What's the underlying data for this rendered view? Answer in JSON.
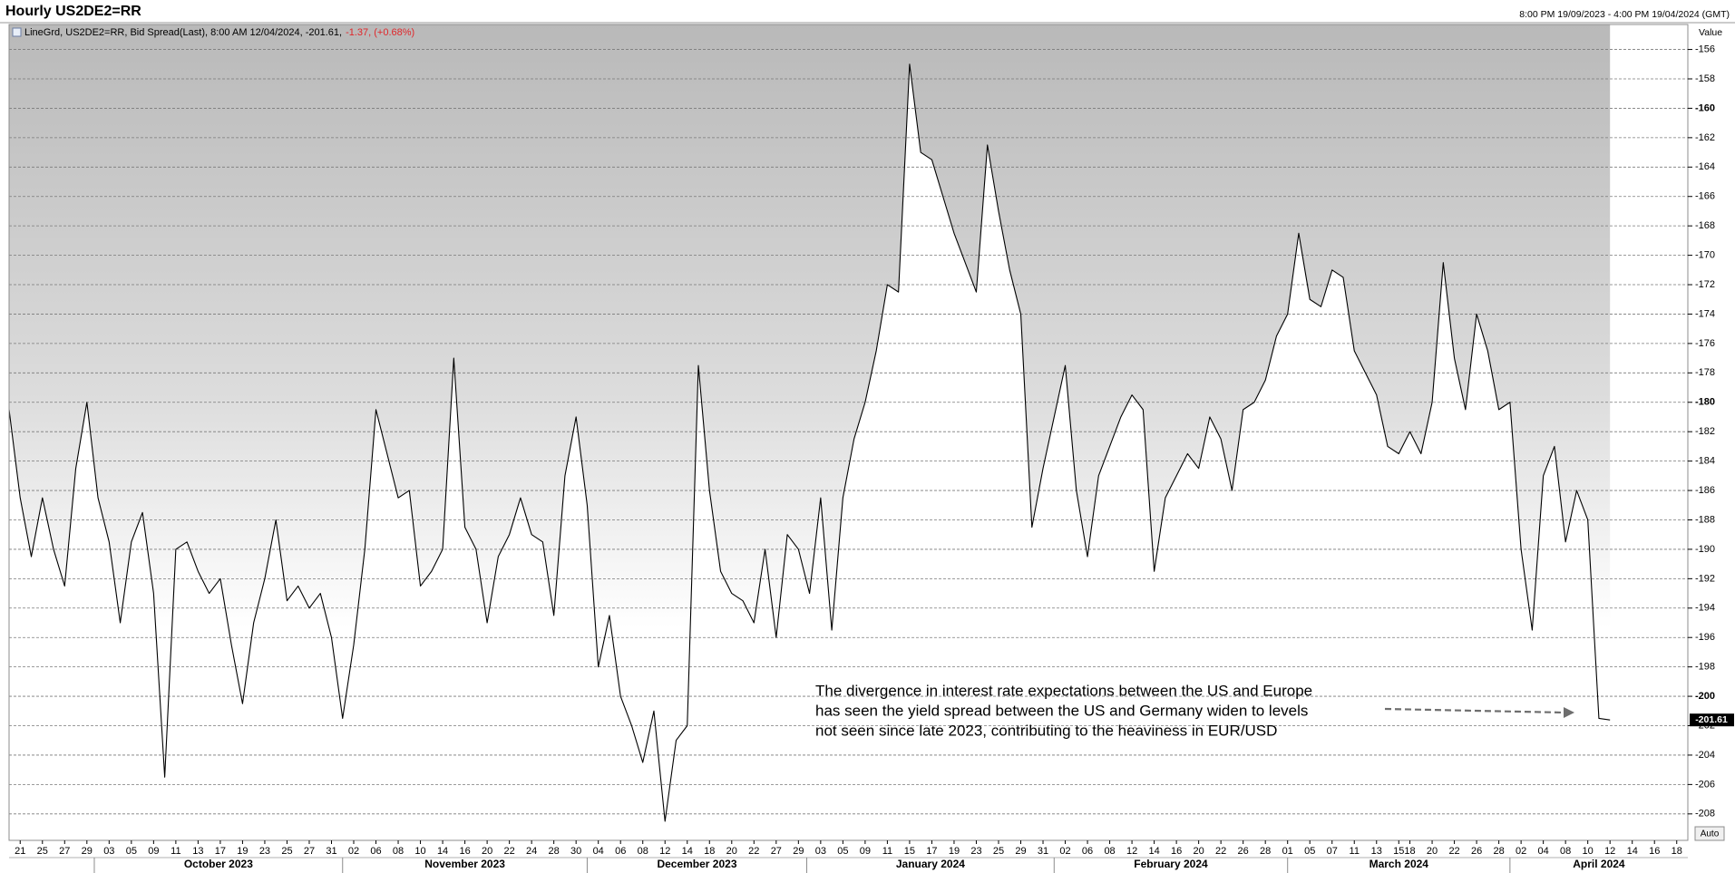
{
  "chart_data": {
    "type": "line",
    "title": "Hourly US2DE2=RR",
    "range_text": "8:00 PM 19/09/2023 - 4:00 PM 19/04/2024 (GMT)",
    "legend": {
      "text": "LineGrd, US2DE2=RR, Bid Spread(Last), 8:00 AM 12/04/2024, -201.61,",
      "change": "-1.37, (+0.68%)"
    },
    "ylabel": "Value",
    "auto_button": "Auto",
    "annotation": [
      "The divergence in interest rate expectations between the US and Europe",
      "has seen the yield spread between the US and Germany widen to levels",
      "not seen since late 2023, contributing to the heaviness in EUR/USD"
    ],
    "color": "#000000",
    "grid": true,
    "x": [
      "2023-09-20",
      "2023-09-21",
      "2023-09-22",
      "2023-09-25",
      "2023-09-26",
      "2023-09-27",
      "2023-09-28",
      "2023-09-29",
      "2023-10-02",
      "2023-10-03",
      "2023-10-04",
      "2023-10-05",
      "2023-10-06",
      "2023-10-09",
      "2023-10-10",
      "2023-10-11",
      "2023-10-12",
      "2023-10-13",
      "2023-10-16",
      "2023-10-17",
      "2023-10-18",
      "2023-10-19",
      "2023-10-20",
      "2023-10-23",
      "2023-10-24",
      "2023-10-25",
      "2023-10-26",
      "2023-10-27",
      "2023-10-30",
      "2023-10-31",
      "2023-11-01",
      "2023-11-02",
      "2023-11-03",
      "2023-11-06",
      "2023-11-07",
      "2023-11-08",
      "2023-11-09",
      "2023-11-10",
      "2023-11-13",
      "2023-11-14",
      "2023-11-15",
      "2023-11-16",
      "2023-11-17",
      "2023-11-20",
      "2023-11-21",
      "2023-11-22",
      "2023-11-23",
      "2023-11-24",
      "2023-11-27",
      "2023-11-28",
      "2023-11-29",
      "2023-11-30",
      "2023-12-01",
      "2023-12-04",
      "2023-12-05",
      "2023-12-06",
      "2023-12-07",
      "2023-12-08",
      "2023-12-11",
      "2023-12-12",
      "2023-12-13",
      "2023-12-14",
      "2023-12-15",
      "2023-12-18",
      "2023-12-19",
      "2023-12-20",
      "2023-12-21",
      "2023-12-22",
      "2023-12-26",
      "2023-12-27",
      "2023-12-28",
      "2023-12-29",
      "2024-01-02",
      "2024-01-03",
      "2024-01-04",
      "2024-01-05",
      "2024-01-08",
      "2024-01-09",
      "2024-01-10",
      "2024-01-11",
      "2024-01-12",
      "2024-01-15",
      "2024-01-16",
      "2024-01-17",
      "2024-01-18",
      "2024-01-19",
      "2024-01-22",
      "2024-01-23",
      "2024-01-24",
      "2024-01-25",
      "2024-01-26",
      "2024-01-29",
      "2024-01-30",
      "2024-01-31",
      "2024-02-01",
      "2024-02-02",
      "2024-02-05",
      "2024-02-06",
      "2024-02-07",
      "2024-02-08",
      "2024-02-09",
      "2024-02-12",
      "2024-02-13",
      "2024-02-14",
      "2024-02-15",
      "2024-02-16",
      "2024-02-19",
      "2024-02-20",
      "2024-02-21",
      "2024-02-22",
      "2024-02-23",
      "2024-02-26",
      "2024-02-27",
      "2024-02-28",
      "2024-02-29",
      "2024-03-01",
      "2024-03-04",
      "2024-03-05",
      "2024-03-06",
      "2024-03-07",
      "2024-03-08",
      "2024-03-11",
      "2024-03-12",
      "2024-03-13",
      "2024-03-14",
      "2024-03-15",
      "2024-03-18",
      "2024-03-19",
      "2024-03-20",
      "2024-03-21",
      "2024-03-22",
      "2024-03-25",
      "2024-03-26",
      "2024-03-27",
      "2024-03-28",
      "2024-04-01",
      "2024-04-02",
      "2024-04-03",
      "2024-04-04",
      "2024-04-05",
      "2024-04-08",
      "2024-04-09",
      "2024-04-10",
      "2024-04-11",
      "2024-04-12"
    ],
    "values": [
      -180.5,
      -186.5,
      -190.5,
      -186.5,
      -190,
      -192.5,
      -184.5,
      -180,
      -186.5,
      -189.5,
      -195,
      -189.5,
      -187.5,
      -193,
      -205.5,
      -190,
      -189.5,
      -191.5,
      -193,
      -192,
      -196.5,
      -200.5,
      -195,
      -192,
      -188,
      -193.5,
      -192.5,
      -194,
      -193,
      -196,
      -201.5,
      -196.5,
      -190,
      -180.5,
      -183.5,
      -186.5,
      -186,
      -192.5,
      -191.5,
      -190,
      -177,
      -188.5,
      -190,
      -195,
      -190.5,
      -189,
      -186.5,
      -189,
      -189.5,
      -194.5,
      -185,
      -181,
      -187,
      -198,
      -194.5,
      -200,
      -202,
      -204.5,
      -201,
      -208.5,
      -203,
      -202,
      -177.5,
      -186,
      -191.5,
      -193,
      -193.5,
      -195,
      -190,
      -196,
      -189,
      -190,
      -193,
      -186.5,
      -195.5,
      -186.5,
      -182.5,
      -180,
      -176.5,
      -172,
      -172.5,
      -157,
      -163,
      -163.5,
      -166,
      -168.5,
      -170.5,
      -172.5,
      -162.5,
      -167,
      -171,
      -174,
      -188.5,
      -184.5,
      -181,
      -177.5,
      -186,
      -190.5,
      -185,
      -183,
      -181,
      -179.5,
      -180.5,
      -191.5,
      -186.5,
      -185,
      -183.5,
      -184.5,
      -181,
      -182.5,
      -186,
      -180.5,
      -180,
      -178.5,
      -175.5,
      -174,
      -168.5,
      -173,
      -173.5,
      -171,
      -171.5,
      -176.5,
      -178,
      -179.5,
      -183,
      -183.5,
      -182,
      -183.5,
      -180,
      -170.5,
      -177,
      -180.5,
      -174,
      -176.5,
      -180.5,
      -180,
      -190,
      -195.5,
      -185,
      -183,
      -189.5,
      -186,
      -188,
      -201.5,
      -201.61
    ],
    "xlim": [
      "2023-09-20",
      "2024-04-19"
    ],
    "xticks": [
      {
        "value": "2023-09-21",
        "label": "21"
      },
      {
        "value": "2023-09-25",
        "label": "25"
      },
      {
        "value": "2023-09-27",
        "label": "27"
      },
      {
        "value": "2023-09-29",
        "label": "29"
      },
      {
        "value": "2023-10-03",
        "label": "03"
      },
      {
        "value": "2023-10-05",
        "label": "05"
      },
      {
        "value": "2023-10-09",
        "label": "09"
      },
      {
        "value": "2023-10-11",
        "label": "11"
      },
      {
        "value": "2023-10-13",
        "label": "13"
      },
      {
        "value": "2023-10-17",
        "label": "17"
      },
      {
        "value": "2023-10-19",
        "label": "19"
      },
      {
        "value": "2023-10-23",
        "label": "23"
      },
      {
        "value": "2023-10-25",
        "label": "25"
      },
      {
        "value": "2023-10-27",
        "label": "27"
      },
      {
        "value": "2023-10-31",
        "label": "31"
      },
      {
        "value": "2023-11-02",
        "label": "02"
      },
      {
        "value": "2023-11-06",
        "label": "06"
      },
      {
        "value": "2023-11-08",
        "label": "08"
      },
      {
        "value": "2023-11-10",
        "label": "10"
      },
      {
        "value": "2023-11-14",
        "label": "14"
      },
      {
        "value": "2023-11-16",
        "label": "16"
      },
      {
        "value": "2023-11-20",
        "label": "20"
      },
      {
        "value": "2023-11-22",
        "label": "22"
      },
      {
        "value": "2023-11-24",
        "label": "24"
      },
      {
        "value": "2023-11-28",
        "label": "28"
      },
      {
        "value": "2023-11-30",
        "label": "30"
      },
      {
        "value": "2023-12-04",
        "label": "04"
      },
      {
        "value": "2023-12-06",
        "label": "06"
      },
      {
        "value": "2023-12-08",
        "label": "08"
      },
      {
        "value": "2023-12-12",
        "label": "12"
      },
      {
        "value": "2023-12-14",
        "label": "14"
      },
      {
        "value": "2023-12-18",
        "label": "18"
      },
      {
        "value": "2023-12-20",
        "label": "20"
      },
      {
        "value": "2023-12-22",
        "label": "22"
      },
      {
        "value": "2023-12-27",
        "label": "27"
      },
      {
        "value": "2023-12-29",
        "label": "29"
      },
      {
        "value": "2024-01-03",
        "label": "03"
      },
      {
        "value": "2024-01-05",
        "label": "05"
      },
      {
        "value": "2024-01-09",
        "label": "09"
      },
      {
        "value": "2024-01-11",
        "label": "11"
      },
      {
        "value": "2024-01-15",
        "label": "15"
      },
      {
        "value": "2024-01-17",
        "label": "17"
      },
      {
        "value": "2024-01-19",
        "label": "19"
      },
      {
        "value": "2024-01-23",
        "label": "23"
      },
      {
        "value": "2024-01-25",
        "label": "25"
      },
      {
        "value": "2024-01-29",
        "label": "29"
      },
      {
        "value": "2024-01-31",
        "label": "31"
      },
      {
        "value": "2024-02-02",
        "label": "02"
      },
      {
        "value": "2024-02-06",
        "label": "06"
      },
      {
        "value": "2024-02-08",
        "label": "08"
      },
      {
        "value": "2024-02-12",
        "label": "12"
      },
      {
        "value": "2024-02-14",
        "label": "14"
      },
      {
        "value": "2024-02-16",
        "label": "16"
      },
      {
        "value": "2024-02-20",
        "label": "20"
      },
      {
        "value": "2024-02-22",
        "label": "22"
      },
      {
        "value": "2024-02-26",
        "label": "26"
      },
      {
        "value": "2024-02-28",
        "label": "28"
      },
      {
        "value": "2024-03-01",
        "label": "01"
      },
      {
        "value": "2024-03-05",
        "label": "05"
      },
      {
        "value": "2024-03-07",
        "label": "07"
      },
      {
        "value": "2024-03-11",
        "label": "11"
      },
      {
        "value": "2024-03-13",
        "label": "13"
      },
      {
        "value": "2024-03-15",
        "label": "15"
      },
      {
        "value": "2024-03-18",
        "label": "18"
      },
      {
        "value": "2024-03-20",
        "label": "20"
      },
      {
        "value": "2024-03-22",
        "label": "22"
      },
      {
        "value": "2024-03-26",
        "label": "26"
      },
      {
        "value": "2024-03-28",
        "label": "28"
      },
      {
        "value": "2024-04-02",
        "label": "02"
      },
      {
        "value": "2024-04-04",
        "label": "04"
      },
      {
        "value": "2024-04-08",
        "label": "08"
      },
      {
        "value": "2024-04-10",
        "label": "10"
      },
      {
        "value": "2024-04-12",
        "label": "12"
      },
      {
        "value": "2024-04-14",
        "label": "14"
      },
      {
        "value": "2024-04-16",
        "label": "16"
      },
      {
        "value": "2024-04-18",
        "label": "18"
      }
    ],
    "months": [
      {
        "value": "2023-10",
        "label": "October 2023"
      },
      {
        "value": "2023-11",
        "label": "November 2023"
      },
      {
        "value": "2023-12",
        "label": "December 2023"
      },
      {
        "value": "2024-01",
        "label": "January 2024"
      },
      {
        "value": "2024-02",
        "label": "February 2024"
      },
      {
        "value": "2024-03",
        "label": "March 2024"
      },
      {
        "value": "2024-04",
        "label": "April 2024"
      }
    ],
    "ylim": [
      -209.8,
      -154.3
    ],
    "yticks": [
      -156,
      -158,
      -160,
      -162,
      -164,
      -166,
      -168,
      -170,
      -172,
      -174,
      -176,
      -178,
      -180,
      -182,
      -184,
      -186,
      -188,
      -190,
      -192,
      -194,
      -196,
      -198,
      -200,
      -202,
      -204,
      -206,
      -208
    ]
  }
}
